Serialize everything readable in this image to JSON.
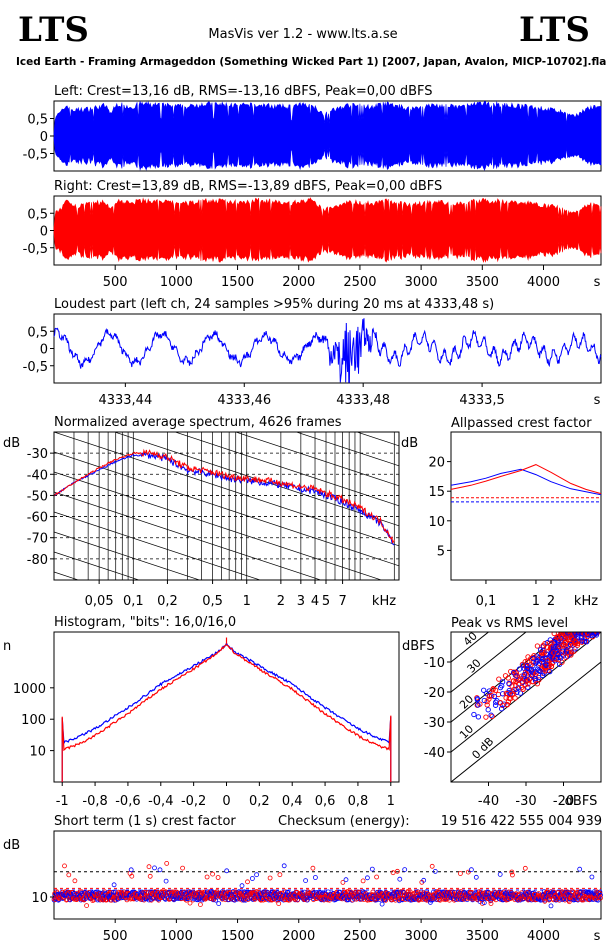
{
  "header": {
    "logo_left": "LTS",
    "logo_right": "LTS",
    "app_title": "MasVis ver 1.2 - www.lts.a.se",
    "track_title": "Iced Earth - Framing Armageddon (Something Wicked Part 1) [2007, Japan, Avalon, MICP-10702].flac"
  },
  "colors": {
    "left": "#0000ff",
    "right": "#ff0000",
    "axis": "#000000",
    "ref": "#000000"
  },
  "chart_data": [
    {
      "id": "left-waveform",
      "type": "area",
      "title": "Left: Crest=13,16 dB, RMS=-13,16 dBFS, Peak=0,00 dBFS",
      "ytick_labels": [
        "0,5",
        "0",
        "-0,5"
      ],
      "yticks": [
        0.5,
        0,
        -0.5
      ],
      "ylim": [
        -1,
        1
      ],
      "xlim": [
        0,
        4470
      ],
      "envelope_x": [
        0,
        10,
        60,
        100,
        160,
        300,
        420,
        460,
        520,
        640,
        700,
        900,
        1100,
        1200,
        1500,
        1700,
        1900,
        2100,
        2200,
        2400,
        2600,
        2700,
        2900,
        3100,
        3300,
        3500,
        3700,
        3900,
        4100,
        4250,
        4350,
        4450
      ],
      "envelope_amp": [
        0.1,
        0.6,
        0.75,
        0.95,
        0.8,
        0.85,
        0.95,
        0.7,
        1.0,
        0.9,
        1.0,
        0.95,
        0.9,
        1.0,
        0.95,
        0.95,
        0.9,
        1.0,
        0.7,
        0.95,
        0.9,
        1.0,
        0.85,
        0.95,
        0.9,
        1.0,
        0.95,
        0.9,
        0.8,
        0.6,
        0.85,
        0.9
      ],
      "color": "#0000ff"
    },
    {
      "id": "right-waveform",
      "type": "area",
      "title": "Right: Crest=13,89 dB, RMS=-13,89 dBFS, Peak=0,00 dBFS",
      "ytick_labels": [
        "0,5",
        "0",
        "-0,5"
      ],
      "yticks": [
        0.5,
        0,
        -0.5
      ],
      "ylim": [
        -1,
        1
      ],
      "xlim": [
        0,
        4470
      ],
      "xtick_labels": [
        "500",
        "1000",
        "1500",
        "2000",
        "2500",
        "3000",
        "3500",
        "4000",
        "s"
      ],
      "xticks": [
        500,
        1000,
        1500,
        2000,
        2500,
        3000,
        3500,
        4000
      ],
      "envelope_x": [
        0,
        10,
        60,
        100,
        160,
        300,
        420,
        460,
        520,
        640,
        700,
        900,
        1100,
        1200,
        1500,
        1700,
        1900,
        2100,
        2200,
        2400,
        2600,
        2700,
        2900,
        3100,
        3300,
        3500,
        3700,
        3900,
        4100,
        4250,
        4350,
        4450
      ],
      "envelope_amp": [
        0.1,
        0.55,
        0.7,
        0.9,
        0.75,
        0.85,
        0.9,
        0.65,
        0.95,
        0.85,
        0.95,
        0.9,
        0.85,
        0.95,
        0.9,
        0.95,
        0.85,
        0.95,
        0.65,
        0.9,
        0.85,
        0.95,
        0.8,
        0.9,
        0.85,
        0.95,
        0.9,
        0.85,
        0.75,
        0.55,
        0.8,
        0.85
      ],
      "color": "#ff0000"
    },
    {
      "id": "loudest-part",
      "type": "line",
      "title": "Loudest part (left  ch, 24 samples >95% during 20 ms at 4333,48 s)",
      "ytick_labels": [
        "0,5",
        "0",
        "-0,5"
      ],
      "yticks": [
        0.5,
        0,
        -0.5
      ],
      "ylim": [
        -1,
        1
      ],
      "xlim": [
        4333.428,
        4333.52
      ],
      "xtick_labels": [
        "4333,44",
        "4333,46",
        "4333,48",
        "4333,5",
        "s"
      ],
      "xticks": [
        4333.44,
        4333.46,
        4333.48,
        4333.5
      ],
      "color": "#0000ff"
    },
    {
      "id": "spectrum",
      "type": "line",
      "title": "Normalized average spectrum, 4626 frames",
      "ylabel": "dB",
      "ytick_labels": [
        "-30",
        "-40",
        "-50",
        "-60",
        "-70",
        "-80"
      ],
      "yticks": [
        -30,
        -40,
        -50,
        -60,
        -70,
        -80
      ],
      "ylim": [
        -90,
        -20
      ],
      "xscale": "log",
      "xlim": [
        0.02,
        22
      ],
      "xtick_labels": [
        "0,05",
        "0,1",
        "0,2",
        "0,5",
        "1",
        "2",
        "3",
        "4",
        "5",
        "7",
        "kHz"
      ],
      "xticks": [
        0.05,
        0.1,
        0.2,
        0.5,
        1,
        2,
        3,
        4,
        5,
        7
      ],
      "x_khz": [
        0.02,
        0.03,
        0.05,
        0.07,
        0.1,
        0.15,
        0.2,
        0.3,
        0.5,
        0.7,
        1,
        1.5,
        2,
        3,
        4,
        5,
        7,
        10,
        15,
        20
      ],
      "series": [
        {
          "name": "left",
          "values": [
            -50,
            -44,
            -38,
            -34,
            -31,
            -31,
            -33,
            -38,
            -40,
            -42,
            -43,
            -44,
            -45,
            -47,
            -48,
            -50,
            -53,
            -57,
            -63,
            -73
          ]
        },
        {
          "name": "right",
          "values": [
            -50,
            -44,
            -37,
            -33,
            -30,
            -30,
            -32,
            -37,
            -39,
            -41,
            -42,
            -43,
            -44,
            -46,
            -47,
            -49,
            -52,
            -56,
            -62,
            -72
          ]
        }
      ]
    },
    {
      "id": "allpassed-crest",
      "type": "line",
      "title": "Allpassed crest factor",
      "ylabel": "dB",
      "ytick_labels": [
        "20",
        "15",
        "10",
        "5"
      ],
      "yticks": [
        20,
        15,
        10,
        5
      ],
      "ylim": [
        0,
        25
      ],
      "xscale": "log",
      "xlim": [
        0.02,
        20
      ],
      "xtick_labels": [
        "0,1",
        "1",
        "2",
        "kHz"
      ],
      "xticks": [
        0.1,
        1,
        2
      ],
      "x_khz": [
        0.02,
        0.05,
        0.1,
        0.2,
        0.5,
        1,
        2,
        5,
        10,
        20
      ],
      "series": [
        {
          "name": "left",
          "values": [
            16,
            16.6,
            17.2,
            18,
            18.7,
            17.8,
            16.6,
            15.4,
            14.9,
            14.4
          ],
          "reference": 13.2
        },
        {
          "name": "right",
          "values": [
            15.3,
            16,
            16.7,
            17.5,
            18.5,
            19.5,
            18.2,
            16.3,
            15.3,
            14.6
          ],
          "reference": 13.9
        }
      ]
    },
    {
      "id": "histogram",
      "type": "line",
      "title": "Histogram, \"bits\": 16,0/16,0",
      "ylabel": "n",
      "yscale": "log",
      "ytick_labels": [
        "1000",
        "100",
        "10"
      ],
      "yticks": [
        1000,
        100,
        10
      ],
      "ylim": [
        1,
        60000
      ],
      "xlim": [
        -1.05,
        1.05
      ],
      "xtick_labels": [
        "-1",
        "-0,8",
        "-0,6",
        "-0,4",
        "-0,2",
        "0",
        "0,2",
        "0,4",
        "0,6",
        "0,8",
        "1"
      ],
      "xticks": [
        -1,
        -0.8,
        -0.6,
        -0.4,
        -0.2,
        0,
        0.2,
        0.4,
        0.6,
        0.8,
        1
      ],
      "x": [
        -0.99,
        -0.9,
        -0.8,
        -0.6,
        -0.4,
        -0.2,
        -0.05,
        0,
        0.05,
        0.2,
        0.4,
        0.6,
        0.8,
        0.9,
        0.99
      ],
      "series": [
        {
          "name": "left",
          "values": [
            18,
            28,
            50,
            230,
            1300,
            5000,
            14000,
            25000,
            14000,
            5000,
            1300,
            230,
            50,
            28,
            18
          ]
        },
        {
          "name": "right",
          "values": [
            11,
            16,
            30,
            150,
            900,
            4000,
            13000,
            25000,
            13000,
            4000,
            900,
            150,
            30,
            16,
            11
          ]
        }
      ]
    },
    {
      "id": "peak-vs-rms",
      "type": "scatter",
      "title": "Peak vs RMS level",
      "ylabel": "dBFS",
      "xlabel": "dBFS",
      "ytick_labels": [
        "-10",
        "-20",
        "-30",
        "-40"
      ],
      "yticks": [
        -10,
        -20,
        -30,
        -40
      ],
      "xtick_labels": [
        "-40",
        "-30",
        "-20"
      ],
      "xticks": [
        -40,
        -30,
        -20
      ],
      "xlim": [
        -50,
        -10
      ],
      "ylim": [
        -50,
        0
      ],
      "crest_line_labels": [
        "40",
        "30",
        "20",
        "10",
        "0 dB"
      ],
      "points_note": "dense cloud along crest ~10-20 dB, RMS -45 to -12 dBFS"
    },
    {
      "id": "short-term-crest",
      "type": "scatter",
      "title": "Short term (1 s) crest factor",
      "checksum_label": "Checksum (energy):",
      "checksum_value": "19 516 422 555 004 939",
      "ylabel": "dB",
      "ytick_labels": [
        "10"
      ],
      "yticks": [
        10
      ],
      "ylim": [
        0,
        40
      ],
      "xlim": [
        0,
        4470
      ],
      "xtick_labels": [
        "500",
        "1000",
        "1500",
        "2000",
        "2500",
        "3000",
        "3500",
        "4000",
        "s"
      ],
      "xticks": [
        500,
        1000,
        1500,
        2000,
        2500,
        3000,
        3500,
        4000
      ],
      "reference_lines": [
        13.2,
        13.9,
        21.5
      ],
      "typical_crest": 10.5
    }
  ]
}
